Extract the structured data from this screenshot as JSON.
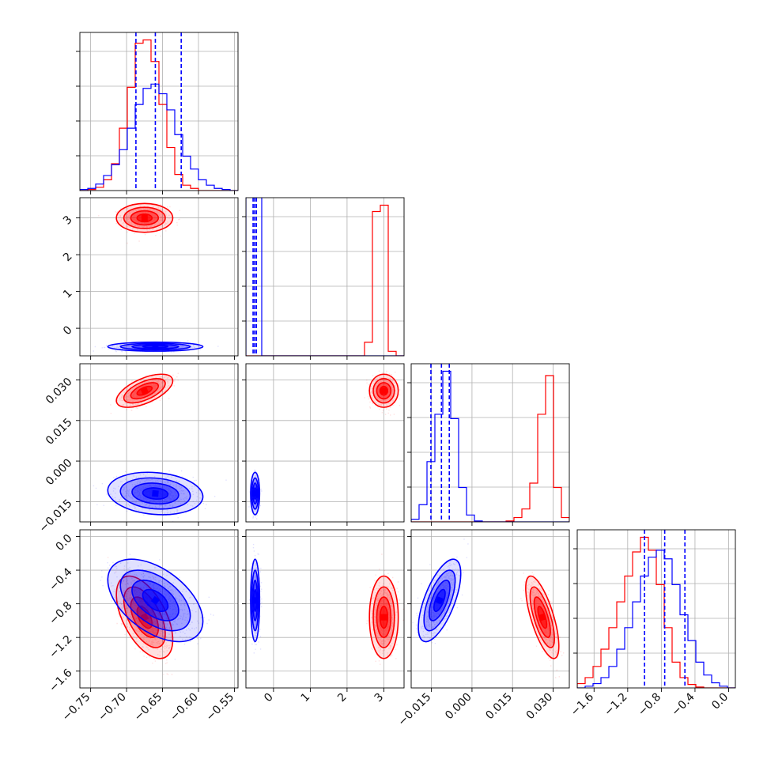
{
  "chart_data": {
    "type": "corner",
    "title": "",
    "grid": true,
    "series_colors": {
      "a": "#ff0000",
      "b": "#0000ff"
    },
    "params": [
      {
        "key": "p1",
        "range": [
          -0.765,
          -0.545
        ],
        "ticks": [
          -0.75,
          -0.7,
          -0.65,
          -0.6,
          -0.55
        ],
        "tick_labels": [
          "−0.75",
          "−0.70",
          "−0.65",
          "−0.60",
          "−0.55"
        ]
      },
      {
        "key": "p2",
        "range": [
          -0.75,
          3.55
        ],
        "ticks": [
          0,
          1,
          2,
          3
        ],
        "tick_labels": [
          "0",
          "1",
          "2",
          "3"
        ]
      },
      {
        "key": "p3",
        "range": [
          -0.0225,
          0.036
        ],
        "ticks": [
          -0.015,
          0.0,
          0.015,
          0.03
        ],
        "tick_labels": [
          "−0.015",
          "0.000",
          "0.015",
          "0.030"
        ]
      },
      {
        "key": "p4",
        "range": [
          -1.8,
          0.08
        ],
        "ticks": [
          -1.6,
          -1.2,
          -0.8,
          -0.4,
          0.0
        ],
        "tick_labels": [
          "−1.6",
          "−1.2",
          "−0.8",
          "−0.4",
          "0.0"
        ]
      }
    ],
    "series": [
      {
        "color": "#ff0000",
        "mean": [
          -0.675,
          3.0,
          0.026,
          -0.96
        ],
        "sd": [
          0.016,
          0.16,
          0.0025,
          0.2
        ],
        "corr": [
          [
            1,
            0,
            0.6,
            -0.55
          ],
          [
            0,
            1,
            0,
            0
          ],
          [
            0.6,
            0,
            1,
            -0.7
          ],
          [
            -0.55,
            0,
            -0.7,
            1
          ]
        ]
      },
      {
        "color": "#0000ff",
        "mean": [
          -0.66,
          -0.5,
          -0.012,
          -0.76
        ],
        "sd": [
          0.027,
          0.05,
          0.0032,
          0.2
        ],
        "corr": [
          [
            1,
            0,
            -0.15,
            -0.5
          ],
          [
            0,
            1,
            0,
            0
          ],
          [
            -0.15,
            0,
            1,
            0.65
          ],
          [
            -0.5,
            0,
            0.65,
            1
          ]
        ]
      }
    ],
    "quantile_lines": [
      [
        -0.687,
        -0.66,
        -0.624
      ],
      [
        -0.555,
        -0.51,
        -0.465
      ],
      [
        -0.0152,
        -0.0113,
        -0.0084
      ],
      [
        -1.0,
        -0.76,
        -0.52
      ]
    ],
    "histograms": {
      "p1": {
        "bins": [
          -0.765,
          -0.754,
          -0.743,
          -0.732,
          -0.721,
          -0.71,
          -0.699,
          -0.688,
          -0.677,
          -0.666,
          -0.655,
          -0.644,
          -0.633,
          -0.622,
          -0.611,
          -0.6,
          -0.589,
          -0.578,
          -0.567,
          -0.556,
          -0.545
        ],
        "red": [
          0,
          1,
          3,
          10,
          25,
          58,
          96,
          137,
          140,
          120,
          80,
          40,
          15,
          5,
          2,
          0,
          0,
          0,
          0,
          0
        ],
        "blue": [
          1,
          2,
          6,
          14,
          24,
          38,
          58,
          80,
          95,
          99,
          90,
          75,
          52,
          32,
          20,
          10,
          5,
          2,
          1,
          0
        ]
      },
      "p2": {
        "bins": [
          -0.75,
          -0.535,
          -0.32,
          -0.105,
          0.11,
          0.325,
          0.54,
          0.755,
          0.97,
          1.185,
          1.4,
          1.615,
          1.83,
          2.045,
          2.26,
          2.475,
          2.69,
          2.905,
          3.12,
          3.335,
          3.55
        ],
        "red": [
          0,
          0,
          0,
          0,
          0,
          0,
          0,
          0,
          0,
          0,
          0,
          0,
          0,
          0,
          0,
          15,
          160,
          167,
          5,
          0
        ],
        "blue": [
          3000,
          3000,
          0,
          0,
          0,
          0,
          0,
          0,
          0,
          0,
          0,
          0,
          0,
          0,
          0,
          0,
          0,
          0,
          0,
          0
        ]
      },
      "p3": {
        "bins": [
          -0.0225,
          -0.01958,
          -0.01665,
          -0.01373,
          -0.0108,
          -0.00788,
          -0.00495,
          -0.00203,
          0.0009,
          0.00382,
          0.00675,
          0.00967,
          0.0126,
          0.01552,
          0.01845,
          0.02137,
          0.0243,
          0.02722,
          0.03015,
          0.03307,
          0.036
        ],
        "red": [
          0,
          0,
          0,
          0,
          0,
          0,
          0,
          0,
          0,
          0,
          0,
          0,
          1,
          5,
          15,
          45,
          125,
          170,
          40,
          5
        ],
        "blue": [
          3,
          20,
          70,
          125,
          175,
          120,
          40,
          8,
          1,
          0,
          0,
          0,
          0,
          0,
          0,
          0,
          0,
          0,
          0,
          0
        ]
      },
      "p4": {
        "bins": [
          -1.8,
          -1.706,
          -1.612,
          -1.518,
          -1.424,
          -1.33,
          -1.236,
          -1.142,
          -1.048,
          -0.954,
          -0.86,
          -0.766,
          -0.672,
          -0.578,
          -0.484,
          -0.39,
          -0.296,
          -0.202,
          -0.108,
          -0.014,
          0.08
        ],
        "red": [
          5,
          12,
          25,
          45,
          70,
          100,
          130,
          158,
          175,
          160,
          120,
          70,
          30,
          12,
          4,
          1,
          0,
          0,
          0,
          0
        ],
        "blue": [
          0,
          2,
          5,
          12,
          25,
          45,
          70,
          100,
          130,
          152,
          160,
          150,
          120,
          85,
          55,
          30,
          15,
          6,
          2,
          0
        ]
      }
    }
  }
}
